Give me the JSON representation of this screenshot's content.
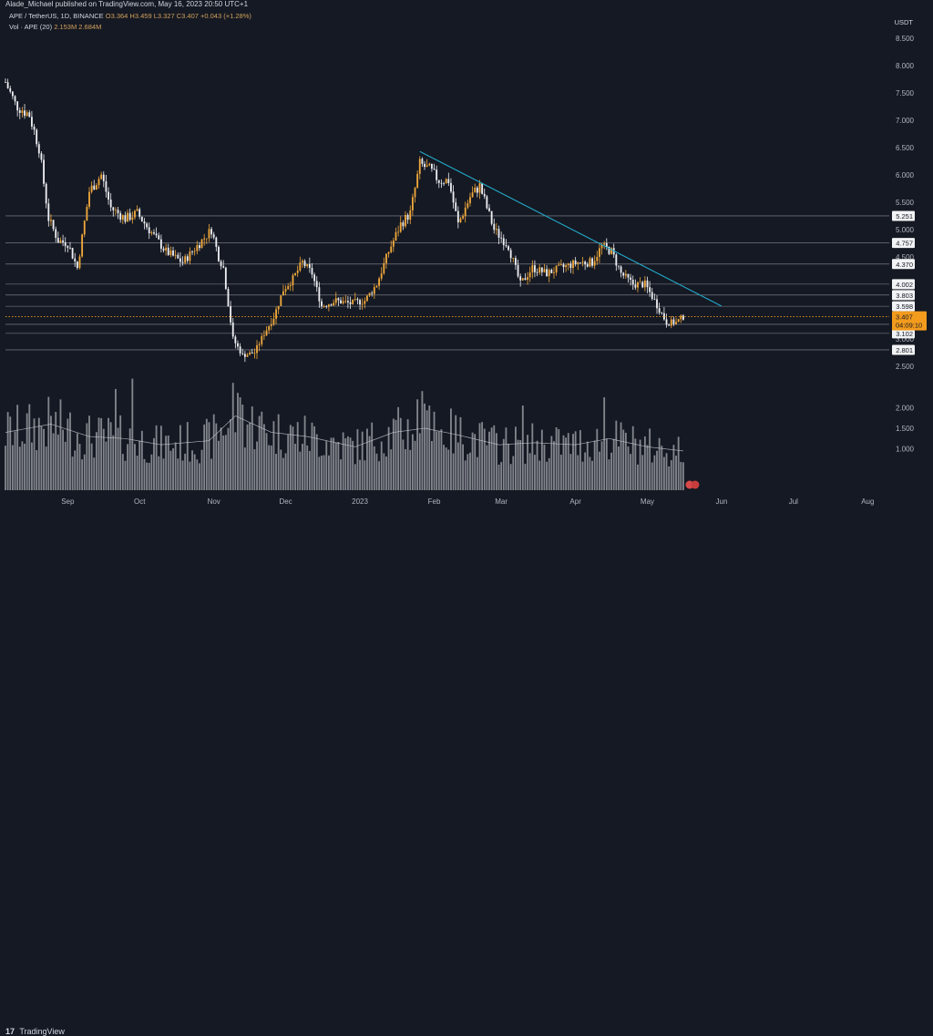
{
  "header": {
    "publish_line": "Alade_Michael published on TradingView.com, May 16, 2023 20:50 UTC+1",
    "symbol_line": "APE / TetherUS, 1D, BINANCE",
    "ohlc_line": "O3.364 H3.459 L3.327 C3.407 +0.043 (+1.28%)",
    "volume_label": "Vol · APE (20)",
    "volume_values": "2.153M 2.684M",
    "currency": "USDT"
  },
  "footer": {
    "logo_mark": "17",
    "logo_text": "TradingView"
  },
  "colors": {
    "background": "#151923",
    "candle_up": "#f0a83c",
    "candle_down": "#eceef2",
    "trendline": "#22a9c8",
    "level_line": "#8a8d96",
    "current_price": "#f29b1d",
    "volume_bar": "#a7a9b0"
  },
  "chart_data": {
    "type": "candlestick",
    "x_tick_labels": [
      "Sep",
      "Oct",
      "Nov",
      "Dec",
      "2023",
      "Feb",
      "Mar",
      "Apr",
      "May",
      "Jun",
      "Jul",
      "Aug"
    ],
    "x_tick_dates": [
      "2022-09-01",
      "2022-10-01",
      "2022-11-01",
      "2022-12-01",
      "2023-01-01",
      "2023-02-01",
      "2023-03-01",
      "2023-04-01",
      "2023-05-01",
      "2023-06-01",
      "2023-07-01",
      "2023-08-01"
    ],
    "xlim": [
      "2022-08-06",
      "2023-08-10"
    ],
    "price_axis": {
      "ticks": [
        "8.500",
        "8.000",
        "7.500",
        "7.000",
        "6.500",
        "6.000",
        "5.500",
        "5.000",
        "4.500",
        "3.500",
        "3.000",
        "2.500"
      ],
      "ylim": [
        2.2,
        8.7
      ]
    },
    "volume_axis": {
      "unit": "M",
      "ticks": [
        "2.000",
        "1.500",
        "1.000"
      ],
      "ylim": [
        0,
        3.0
      ]
    },
    "price_path": [
      [
        "2022-08-06",
        7.7
      ],
      [
        "2022-08-10",
        7.3
      ],
      [
        "2022-08-16",
        7.1
      ],
      [
        "2022-08-20",
        6.5
      ],
      [
        "2022-08-24",
        5.2
      ],
      [
        "2022-08-28",
        4.8
      ],
      [
        "2022-09-01",
        4.75
      ],
      [
        "2022-09-05",
        4.3
      ],
      [
        "2022-09-10",
        5.7
      ],
      [
        "2022-09-15",
        6.0
      ],
      [
        "2022-09-19",
        5.4
      ],
      [
        "2022-09-25",
        5.2
      ],
      [
        "2022-09-30",
        5.3
      ],
      [
        "2022-10-05",
        5.0
      ],
      [
        "2022-10-12",
        4.6
      ],
      [
        "2022-10-19",
        4.4
      ],
      [
        "2022-10-25",
        4.7
      ],
      [
        "2022-10-31",
        5.0
      ],
      [
        "2022-11-03",
        4.5
      ],
      [
        "2022-11-05",
        4.3
      ],
      [
        "2022-11-09",
        3.0
      ],
      [
        "2022-11-13",
        2.7
      ],
      [
        "2022-11-18",
        2.75
      ],
      [
        "2022-11-22",
        3.1
      ],
      [
        "2022-11-26",
        3.4
      ],
      [
        "2022-11-30",
        3.9
      ],
      [
        "2022-12-04",
        4.1
      ],
      [
        "2022-12-08",
        4.4
      ],
      [
        "2022-12-12",
        4.2
      ],
      [
        "2022-12-16",
        3.6
      ],
      [
        "2022-12-22",
        3.7
      ],
      [
        "2022-12-28",
        3.65
      ],
      [
        "2023-01-03",
        3.7
      ],
      [
        "2023-01-08",
        4.0
      ],
      [
        "2023-01-13",
        4.6
      ],
      [
        "2023-01-18",
        5.1
      ],
      [
        "2023-01-22",
        5.3
      ],
      [
        "2023-01-26",
        6.2
      ],
      [
        "2023-01-30",
        6.1
      ],
      [
        "2023-02-03",
        5.9
      ],
      [
        "2023-02-07",
        5.9
      ],
      [
        "2023-02-11",
        5.1
      ],
      [
        "2023-02-16",
        5.6
      ],
      [
        "2023-02-20",
        5.8
      ],
      [
        "2023-02-26",
        5.0
      ],
      [
        "2023-03-04",
        4.7
      ],
      [
        "2023-03-09",
        4.0
      ],
      [
        "2023-03-14",
        4.3
      ],
      [
        "2023-03-20",
        4.2
      ],
      [
        "2023-03-26",
        4.3
      ],
      [
        "2023-04-02",
        4.4
      ],
      [
        "2023-04-08",
        4.4
      ],
      [
        "2023-04-12",
        4.7
      ],
      [
        "2023-04-16",
        4.6
      ],
      [
        "2023-04-20",
        4.2
      ],
      [
        "2023-04-25",
        4.0
      ],
      [
        "2023-04-30",
        4.0
      ],
      [
        "2023-05-04",
        3.7
      ],
      [
        "2023-05-09",
        3.3
      ],
      [
        "2023-05-13",
        3.3
      ],
      [
        "2023-05-16",
        3.407
      ]
    ],
    "volume_path": [
      [
        "2022-08-06",
        1.4
      ],
      [
        "2022-08-25",
        1.6
      ],
      [
        "2022-09-10",
        1.3
      ],
      [
        "2022-09-25",
        1.25
      ],
      [
        "2022-10-10",
        1.1
      ],
      [
        "2022-10-30",
        1.2
      ],
      [
        "2022-11-10",
        1.8
      ],
      [
        "2022-11-25",
        1.4
      ],
      [
        "2022-12-10",
        1.3
      ],
      [
        "2022-12-30",
        1.05
      ],
      [
        "2023-01-15",
        1.4
      ],
      [
        "2023-01-28",
        1.5
      ],
      [
        "2023-02-10",
        1.35
      ],
      [
        "2023-02-28",
        1.1
      ],
      [
        "2023-03-15",
        1.15
      ],
      [
        "2023-04-01",
        1.1
      ],
      [
        "2023-04-15",
        1.25
      ],
      [
        "2023-05-01",
        1.05
      ],
      [
        "2023-05-16",
        0.95
      ]
    ],
    "volume_spikes": [
      [
        "2022-09-28",
        2.7
      ],
      [
        "2022-09-21",
        2.45
      ],
      [
        "2022-11-09",
        2.6
      ],
      [
        "2022-11-12",
        2.25
      ],
      [
        "2023-01-25",
        2.2
      ],
      [
        "2023-01-27",
        2.4
      ],
      [
        "2023-02-01",
        1.9
      ],
      [
        "2023-03-10",
        2.05
      ],
      [
        "2023-04-13",
        2.25
      ],
      [
        "2023-01-30",
        2.05
      ]
    ],
    "levels": [
      {
        "value": 5.251,
        "label": "5.251"
      },
      {
        "value": 4.757,
        "label": "4.757"
      },
      {
        "value": 4.37,
        "label": "4.370"
      },
      {
        "value": 4.002,
        "label": "4.002"
      },
      {
        "value": 3.803,
        "label": "3.803"
      },
      {
        "value": 3.598,
        "label": "3.598"
      },
      {
        "value": 3.268,
        "label": "3.268"
      },
      {
        "value": 3.102,
        "label": "3.102"
      },
      {
        "value": 2.801,
        "label": "2.801"
      }
    ],
    "current_price": {
      "value": 3.407,
      "label": "3.407",
      "countdown": "04:09:10"
    },
    "trendline": {
      "start": [
        "2023-01-26",
        6.43
      ],
      "end": [
        "2023-06-01",
        3.6
      ]
    }
  }
}
